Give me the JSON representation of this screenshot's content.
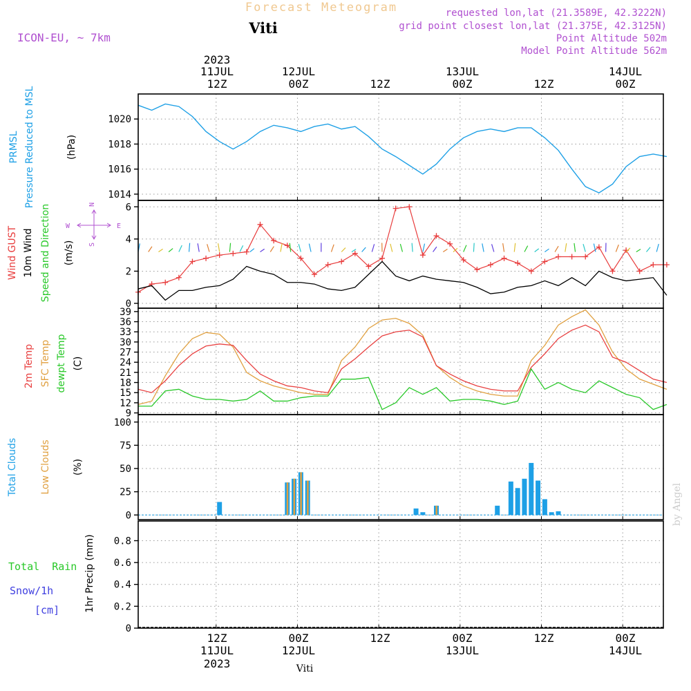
{
  "header": {
    "title": "Forecast Meteogram",
    "location": "Viti",
    "model": "ICON-EU, ~ 7km",
    "requested": "requested lon,lat (21.3589E, 42.3222N)",
    "gridpoint": "grid point closest lon,lat (21.375E, 42.3125N)",
    "point_alt": "Point Altitude 502m",
    "model_alt": "Model Point Altitude 562m",
    "footer_location": "Viti",
    "credit": "by Angel"
  },
  "time_axis": {
    "top_labels": [
      {
        "time": "12Z",
        "date": "11JUL",
        "year": "2023"
      },
      {
        "time": "00Z",
        "date": "12JUL"
      },
      {
        "time": "12Z"
      },
      {
        "time": "00Z",
        "date": "13JUL"
      },
      {
        "time": "12Z"
      },
      {
        "time": "00Z",
        "date": "14JUL"
      }
    ],
    "bottom_labels": [
      {
        "time": "12Z",
        "date": "11JUL",
        "year": "2023"
      },
      {
        "time": "00Z",
        "date": "12JUL"
      },
      {
        "time": "12Z"
      },
      {
        "time": "00Z",
        "date": "13JUL"
      },
      {
        "time": "12Z"
      },
      {
        "time": "00Z",
        "date": "14JUL"
      }
    ]
  },
  "panels": {
    "pressure": {
      "label1": "PRMSL",
      "label2": "Pressure Reduced to MSL",
      "unit": "(hPa)",
      "color": "#1ea0e6"
    },
    "wind": {
      "label_gust": "Wind GUST",
      "label_wind": "10m Wind",
      "label_dir": "Speed and Direction",
      "unit": "(m/s)",
      "compass_n": "N",
      "compass_s": "S",
      "compass_w": "W",
      "compass_e": "E",
      "gust_color": "#e83c3c",
      "wind_color": "#000000"
    },
    "temp": {
      "label_2m": "2m Temp",
      "label_sfc": "SFC Temp",
      "label_dew": "dewpt Temp",
      "unit": "(C)",
      "c2m": "#e84040",
      "csfc": "#e0a040",
      "cdew": "#28c828"
    },
    "clouds": {
      "label_total": "Total Clouds",
      "label_low": "Low Clouds",
      "unit": "(%)",
      "ctotal": "#1ea0e6",
      "clow": "#e0a040"
    },
    "precip": {
      "label_rain": "Total  Rain",
      "label_snow": "Snow/1h",
      "label_cm": "[cm]",
      "unit": "1hr Precip (mm)",
      "crain": "#28c828",
      "csnow": "#4040e0"
    }
  },
  "chart_data": [
    {
      "type": "line",
      "name": "pressure",
      "ylim": [
        1013.5,
        1022
      ],
      "yticks": [
        1014,
        1016,
        1018,
        1020
      ],
      "x": [
        0,
        2,
        4,
        6,
        8,
        10,
        12,
        14,
        16,
        18,
        20,
        22,
        24,
        26,
        28,
        30,
        32,
        34,
        36,
        38,
        40,
        42,
        44,
        46,
        48,
        50,
        52,
        54,
        56,
        58,
        60,
        62,
        64,
        66,
        68,
        70,
        72,
        74,
        76,
        78
      ],
      "series": [
        {
          "values": [
            1021.1,
            1020.7,
            1021.2,
            1021.0,
            1020.2,
            1019.0,
            1018.2,
            1017.6,
            1018.2,
            1019.0,
            1019.5,
            1019.3,
            1019.0,
            1019.4,
            1019.6,
            1019.2,
            1019.4,
            1018.6,
            1017.6,
            1017.0,
            1016.3,
            1015.6,
            1016.4,
            1017.6,
            1018.5,
            1019.0,
            1019.2,
            1019.0,
            1019.3,
            1019.3,
            1018.5,
            1017.5,
            1016.0,
            1014.6,
            1014.1,
            1014.8,
            1016.2,
            1017.0,
            1017.2,
            1017.0
          ]
        }
      ]
    },
    {
      "type": "line",
      "name": "wind",
      "ylim": [
        -0.3,
        6.4
      ],
      "yticks": [
        0,
        2,
        4,
        6
      ],
      "x": [
        0,
        2,
        4,
        6,
        8,
        10,
        12,
        14,
        16,
        18,
        20,
        22,
        24,
        26,
        28,
        30,
        32,
        34,
        36,
        38,
        40,
        42,
        44,
        46,
        48,
        50,
        52,
        54,
        56,
        58,
        60,
        62,
        64,
        66,
        68,
        70,
        72,
        74,
        76,
        78
      ],
      "series": [
        {
          "values": [
            0.7,
            1.2,
            1.3,
            1.6,
            2.6,
            2.8,
            3.0,
            3.1,
            3.2,
            4.9,
            3.9,
            3.6,
            2.8,
            1.8,
            2.4,
            2.6,
            3.1,
            2.3,
            2.8,
            5.9,
            6.0,
            3.0,
            4.2,
            3.7,
            2.7,
            2.1,
            2.4,
            2.8,
            2.5,
            2.0,
            2.6,
            2.9,
            2.9,
            2.9,
            3.5,
            2.0,
            3.3,
            2.0,
            2.4,
            2.4
          ]
        },
        {
          "values": [
            0.9,
            1.1,
            0.2,
            0.8,
            0.8,
            1.0,
            1.1,
            1.5,
            2.3,
            2.0,
            1.8,
            1.3,
            1.3,
            1.2,
            0.9,
            0.8,
            1.0,
            1.8,
            2.6,
            1.7,
            1.4,
            1.7,
            1.5,
            1.4,
            1.3,
            1.0,
            0.6,
            0.7,
            1.0,
            1.1,
            1.4,
            1.1,
            1.6,
            1.1,
            2.0,
            1.6,
            1.4,
            1.5,
            1.6,
            0.5
          ]
        }
      ]
    },
    {
      "type": "line",
      "name": "temperature",
      "ylim": [
        8.5,
        40
      ],
      "yticks": [
        9,
        12,
        15,
        18,
        21,
        24,
        27,
        30,
        33,
        36,
        39
      ],
      "x": [
        0,
        2,
        4,
        6,
        8,
        10,
        12,
        14,
        16,
        18,
        20,
        22,
        24,
        26,
        28,
        30,
        32,
        34,
        36,
        38,
        40,
        42,
        44,
        46,
        48,
        50,
        52,
        54,
        56,
        58,
        60,
        62,
        64,
        66,
        68,
        70,
        72,
        74,
        76,
        78
      ],
      "series": [
        {
          "values": [
            16.0,
            15.0,
            18.5,
            23.0,
            26.5,
            28.8,
            29.4,
            29.0,
            24.5,
            20.5,
            18.5,
            17.0,
            16.5,
            15.5,
            15.0,
            22.0,
            25.0,
            28.5,
            31.8,
            33.0,
            33.5,
            31.5,
            23.0,
            20.5,
            18.5,
            17.0,
            16.0,
            15.5,
            15.5,
            22.5,
            26.5,
            31.0,
            33.5,
            35.0,
            33.0,
            25.5,
            24.0,
            21.5,
            19.0,
            18.0
          ]
        },
        {
          "values": [
            11.5,
            12.5,
            20.0,
            26.5,
            31.0,
            32.8,
            32.3,
            28.5,
            21.0,
            18.5,
            17.0,
            16.0,
            15.0,
            14.5,
            14.5,
            24.5,
            28.5,
            34.0,
            36.5,
            37.0,
            35.5,
            32.0,
            23.0,
            19.5,
            17.0,
            15.5,
            14.5,
            14.0,
            14.0,
            24.5,
            29.0,
            35.0,
            37.5,
            39.5,
            35.0,
            27.0,
            22.0,
            19.0,
            17.5,
            16.0
          ]
        },
        {
          "values": [
            11.0,
            11.0,
            15.5,
            16.0,
            14.0,
            13.0,
            13.0,
            12.5,
            13.0,
            15.5,
            12.5,
            12.5,
            13.5,
            14.0,
            14.0,
            19.0,
            19.0,
            19.5,
            10.0,
            12.0,
            16.5,
            14.5,
            16.5,
            12.5,
            13.0,
            13.0,
            12.5,
            11.5,
            12.5,
            22.0,
            16.0,
            18.0,
            16.0,
            15.0,
            18.5,
            16.5,
            14.5,
            13.5,
            10.0,
            11.5
          ]
        }
      ]
    },
    {
      "type": "bar",
      "name": "clouds",
      "ylim": [
        -5,
        108
      ],
      "yticks": [
        0,
        25,
        50,
        75,
        100
      ],
      "series": [
        {
          "name": "Total Clouds",
          "x": [
            12,
            22,
            23,
            24,
            25,
            41,
            42,
            44,
            53,
            55,
            56,
            57,
            58,
            59,
            60,
            61,
            62
          ],
          "values": [
            14,
            35,
            39,
            46,
            37,
            7,
            3,
            10,
            10,
            36,
            29,
            39,
            56,
            37,
            17,
            3,
            4
          ]
        },
        {
          "name": "Low Clouds",
          "x": [
            22,
            23,
            24,
            25,
            44
          ],
          "values": [
            35,
            39,
            46,
            37,
            10
          ]
        }
      ]
    },
    {
      "type": "line",
      "name": "precip",
      "ylim": [
        0,
        0.98
      ],
      "yticks": [
        0,
        0.2,
        0.4,
        0.6,
        0.8
      ],
      "series": [
        {
          "name": "Total Rain",
          "values": []
        }
      ]
    }
  ]
}
